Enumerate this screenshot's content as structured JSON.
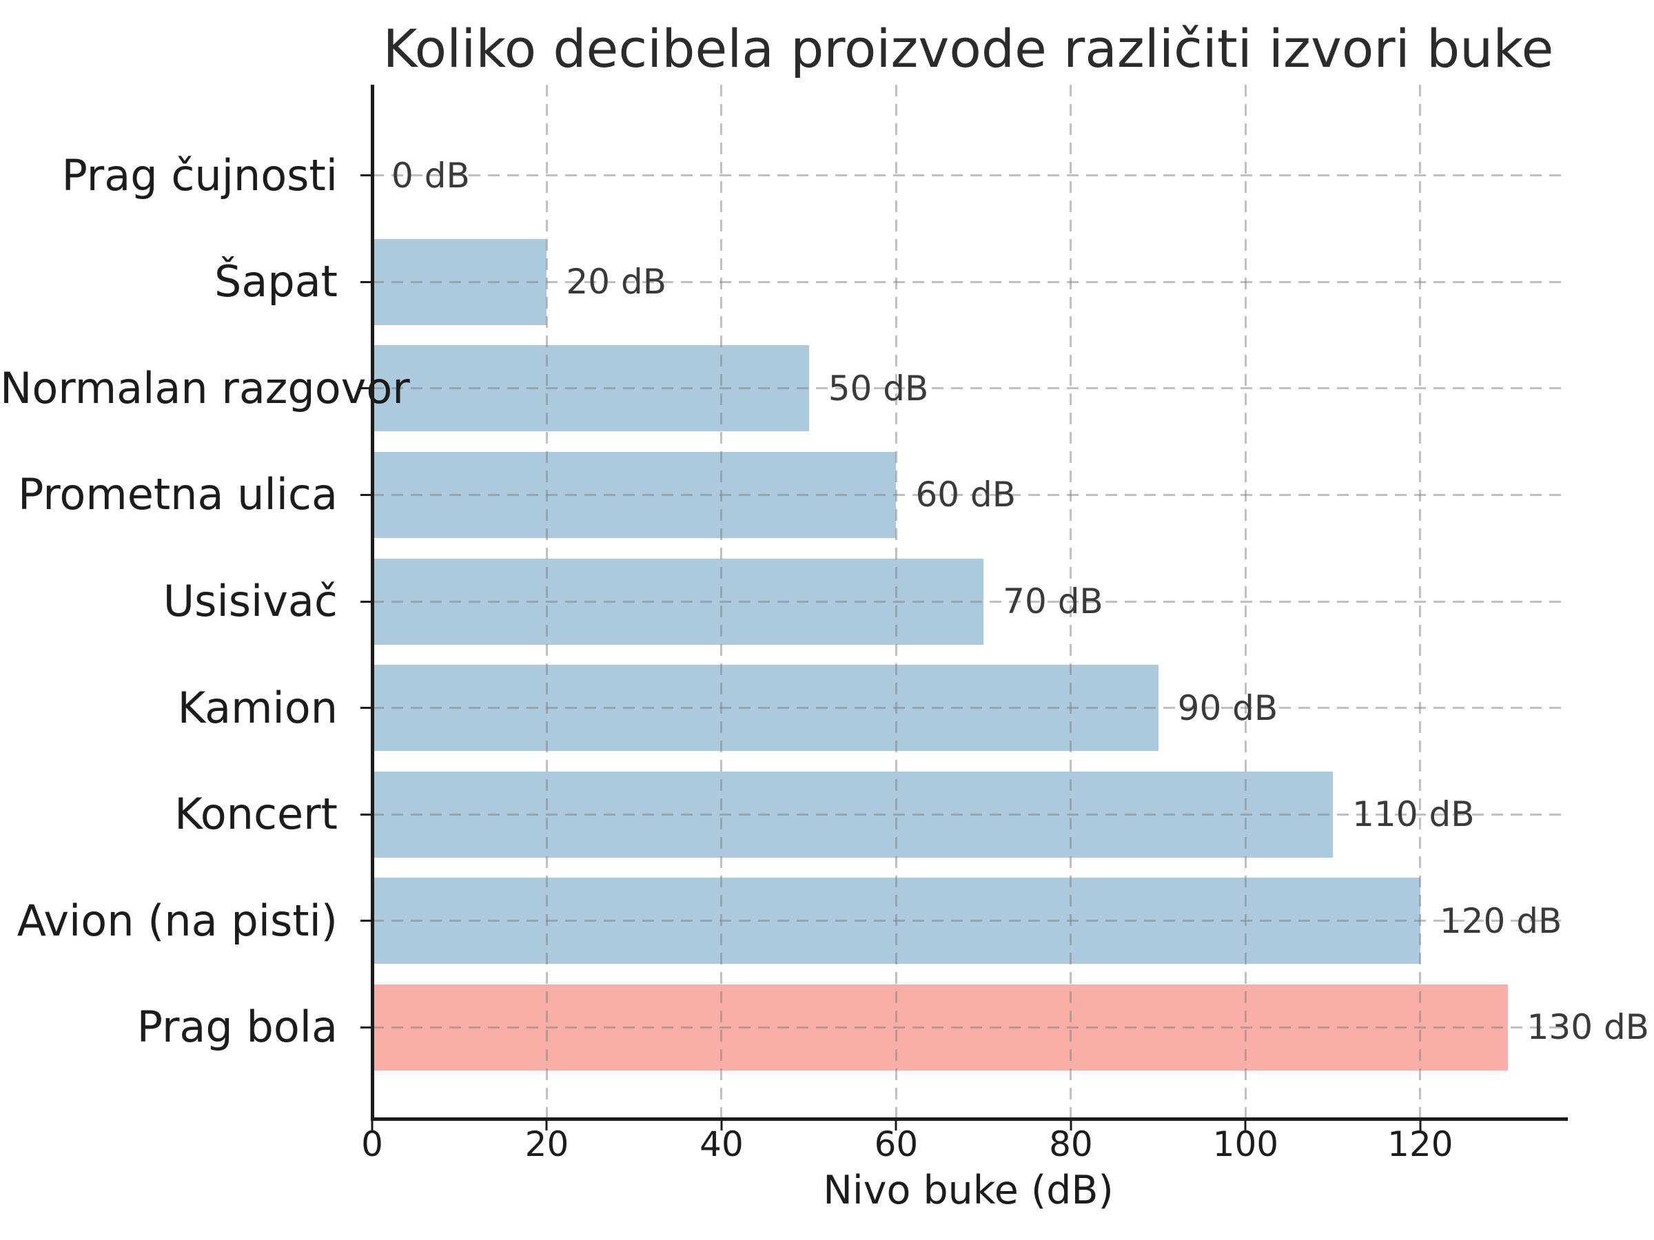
{
  "chart_data": {
    "type": "bar",
    "orientation": "horizontal",
    "title": "Koliko decibela proizvode različiti izvori buke",
    "xlabel": "Nivo buke (dB)",
    "ylabel": "",
    "categories": [
      "Prag čujnosti",
      "Šapat",
      "Normalan razgovor",
      "Prometna ulica",
      "Usisivač",
      "Kamion",
      "Koncert",
      "Avion (na pisti)",
      "Prag bola"
    ],
    "values": [
      0,
      20,
      50,
      60,
      70,
      90,
      110,
      120,
      130
    ],
    "value_labels": [
      "0 dB",
      "20 dB",
      "50 dB",
      "60 dB",
      "70 dB",
      "90 dB",
      "110 dB",
      "120 dB",
      "130 dB"
    ],
    "xticks": [
      0,
      20,
      40,
      60,
      80,
      100,
      120
    ],
    "xtick_labels": [
      "0",
      "20",
      "40",
      "60",
      "80",
      "100",
      "120"
    ],
    "xlim": [
      0,
      136.5
    ],
    "grid": "both-dashed",
    "legend": "none",
    "highlight_index": 8,
    "colors": {
      "bar": "#adc9de",
      "bar_highlight": "#f9aea8",
      "grid": "#808080",
      "axis": "#1c1c1c",
      "axis_text": "#1c1c1c",
      "title_text": "#2b2b2b",
      "value_text": "#3a3a3a",
      "background": "#ffffff"
    }
  }
}
